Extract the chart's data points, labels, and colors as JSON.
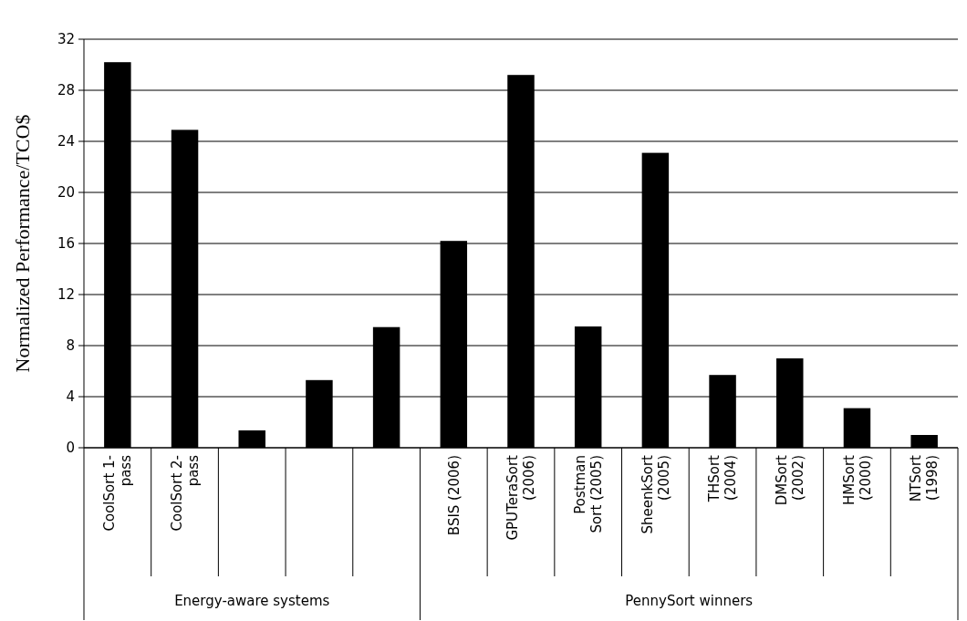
{
  "chart_data": {
    "type": "bar",
    "ylabel": "Normalized Performance/TCO$",
    "categories": [
      "CoolSort 1-pass",
      "CoolSort 2-pass",
      null,
      null,
      null,
      "BSIS (2006)",
      "GPUTeraSort (2006)",
      "Postman Sort (2005)",
      "SheenkSort (2005)",
      "THSort (2004)",
      "DMSort (2002)",
      "HMSort (2000)",
      "NTSort (1998)"
    ],
    "values": [
      30.2,
      24.9,
      1.36,
      5.3,
      9.45,
      16.2,
      29.2,
      9.5,
      23.1,
      5.7,
      7.0,
      3.1,
      1.0
    ],
    "color": "#000000",
    "ylim": [
      0,
      32
    ],
    "yticks": [
      0,
      4,
      8,
      12,
      16,
      20,
      24,
      28,
      32
    ],
    "grid": "y",
    "annotations": [
      "Energy-aware systems",
      "PennySort winners"
    ]
  }
}
